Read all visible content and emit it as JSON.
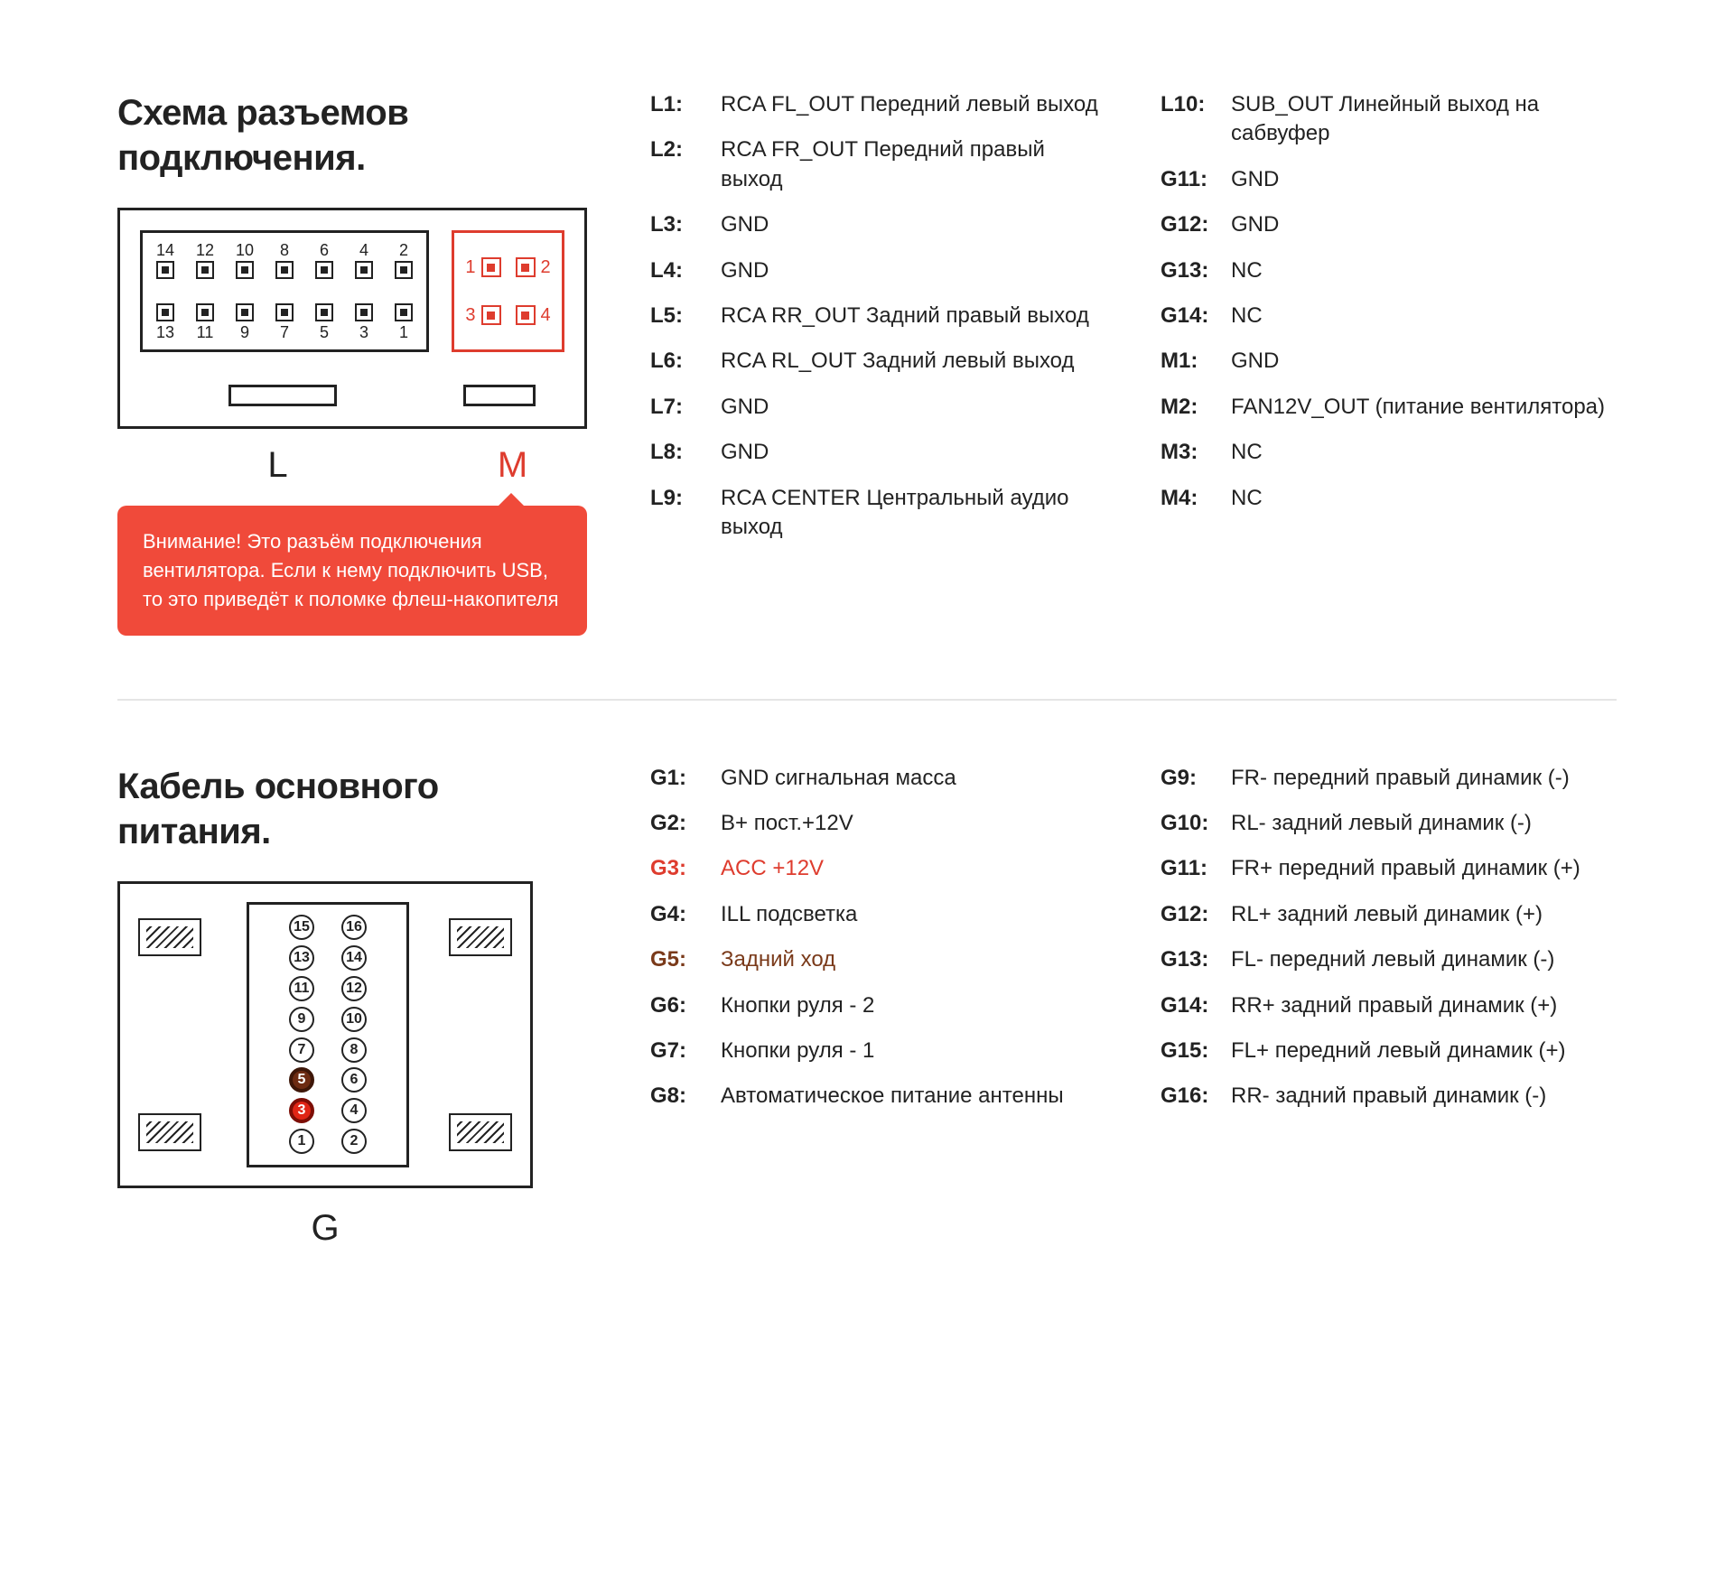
{
  "colors": {
    "text": "#222222",
    "accent_red": "#de3c2e",
    "warning_bg": "#f04a3a",
    "warning_text": "#ffffff",
    "brown": "#7a3a1a",
    "divider": "#e5e5e5",
    "background": "#ffffff"
  },
  "section1": {
    "title": "Схема разъемов подключения.",
    "diagram": {
      "outer_size": [
        520,
        245
      ],
      "connector_L": {
        "label": "L",
        "label_color": "#222222",
        "border_color": "#222222",
        "rows": [
          [
            14,
            12,
            10,
            8,
            6,
            4,
            2
          ],
          [
            13,
            11,
            9,
            7,
            5,
            3,
            1
          ]
        ]
      },
      "connector_M": {
        "label": "M",
        "label_color": "#de3c2e",
        "border_color": "#de3c2e",
        "rows": [
          [
            1,
            2
          ],
          [
            3,
            4
          ]
        ]
      }
    },
    "warning_text": "Внимание! Это разъём подключения вентилятора. Если к нему подключить USB, то это приведёт к поломке флеш-накопителя",
    "pins_col1": [
      {
        "label": "L1:",
        "desc": "RCA FL_OUT Передний левый выход"
      },
      {
        "label": "L2:",
        "desc": "RCA FR_OUT  Передний правый выход"
      },
      {
        "label": "L3:",
        "desc": "GND"
      },
      {
        "label": "L4:",
        "desc": "GND"
      },
      {
        "label": "L5:",
        "desc": "RCA RR_OUT Задний правый выход"
      },
      {
        "label": "L6:",
        "desc": "RCA RL_OUT Задний левый выход"
      },
      {
        "label": "L7:",
        "desc": "GND"
      },
      {
        "label": "L8:",
        "desc": "GND"
      },
      {
        "label": "L9:",
        "desc": "RCA CENTER Центральный аудио выход"
      }
    ],
    "pins_col2": [
      {
        "label": "L10:",
        "desc": "SUB_OUT Линейный выход на сабвуфер"
      },
      {
        "label": "G11:",
        "desc": "GND"
      },
      {
        "label": "G12:",
        "desc": "GND"
      },
      {
        "label": "G13:",
        "desc": "NC"
      },
      {
        "label": "G14:",
        "desc": "NC"
      },
      {
        "label": "M1:",
        "desc": "GND"
      },
      {
        "label": "M2:",
        "desc": "FAN12V_OUT (питание вентилятора)"
      },
      {
        "label": "M3:",
        "desc": "NC"
      },
      {
        "label": "M4:",
        "desc": "NC"
      }
    ]
  },
  "section2": {
    "title": "Кабель основного питания.",
    "diagram": {
      "label": "G",
      "outer_size": [
        460,
        340
      ],
      "pin_rows": [
        [
          1,
          2
        ],
        [
          3,
          4
        ],
        [
          5,
          6
        ],
        [
          7,
          8
        ],
        [
          9,
          10
        ],
        [
          11,
          12
        ],
        [
          13,
          14
        ],
        [
          15,
          16
        ]
      ],
      "highlighted_pins": {
        "3": {
          "bg": "#e02515",
          "ring": "#7a0d05"
        },
        "5": {
          "bg": "#6d2b12",
          "ring": "#3c1608"
        }
      }
    },
    "pins_col1": [
      {
        "label": "G1:",
        "desc": "GND сигнальная масса"
      },
      {
        "label": "G2:",
        "desc": "B+ пост.+12V"
      },
      {
        "label": "G3:",
        "desc": "ACC +12V",
        "color": "red"
      },
      {
        "label": "G4:",
        "desc": "ILL подсветка"
      },
      {
        "label": "G5:",
        "desc": "Задний ход",
        "color": "brown"
      },
      {
        "label": "G6:",
        "desc": "Кнопки руля - 2"
      },
      {
        "label": "G7:",
        "desc": "Кнопки руля - 1"
      },
      {
        "label": "G8:",
        "desc": "Автоматическое питание антенны"
      }
    ],
    "pins_col2": [
      {
        "label": "G9:",
        "desc": "FR- передний правый динамик (-)"
      },
      {
        "label": "G10:",
        "desc": "RL- задний левый динамик (-)"
      },
      {
        "label": "G11:",
        "desc": "FR+ передний правый динамик (+)"
      },
      {
        "label": "G12:",
        "desc": "RL+ задний левый динамик (+)"
      },
      {
        "label": "G13:",
        "desc": "FL- передний левый динамик (-)"
      },
      {
        "label": "G14:",
        "desc": "RR+ задний правый динамик (+)"
      },
      {
        "label": "G15:",
        "desc": "FL+ передний левый динамик (+)"
      },
      {
        "label": "G16:",
        "desc": "RR- задний правый динамик (-)"
      }
    ]
  }
}
